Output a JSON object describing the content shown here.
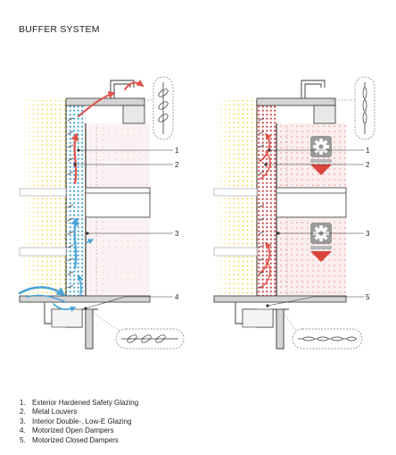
{
  "title": "BUFFER SYSTEM",
  "callouts": {
    "left": [
      "1",
      "2",
      "3",
      "4"
    ],
    "right": [
      "1",
      "2",
      "3",
      "5"
    ]
  },
  "legend": [
    {
      "num": "1.",
      "text": "Exterior Hardened Safety Glazing"
    },
    {
      "num": "2.",
      "text": "Metal Louvers"
    },
    {
      "num": "3.",
      "text": "Interior Double-, Low-E Glazing"
    },
    {
      "num": "4.",
      "text": "Motorized Open Dampers"
    },
    {
      "num": "5.",
      "text": "Motorized Closed Dampers"
    }
  ],
  "colors": {
    "sun_dots": "#f2dc3c",
    "cool_dots": "#3b9fd0",
    "warm_dots": "#d93a3a",
    "warm_arrow": "#e0524a",
    "cool_arrow": "#4aa3d6",
    "interior_tint": "#f5e1e1",
    "structure": "#cfcfcf",
    "line": "#333333"
  },
  "icons": [
    "gear-icon",
    "down-triangle-icon",
    "airflow-arrow-icon",
    "damper-detail-icon"
  ]
}
